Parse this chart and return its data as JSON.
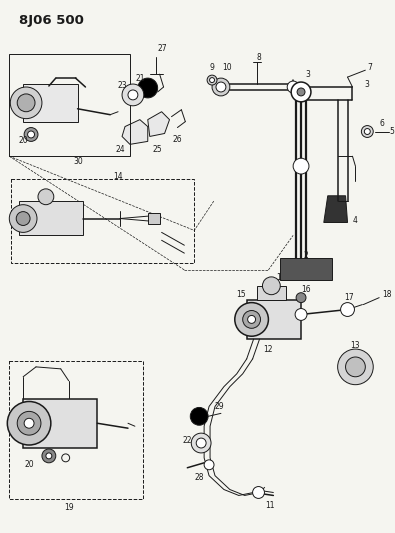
{
  "title": "8J06 500",
  "bg_color": "#f5f5f0",
  "line_color": "#1a1a1a",
  "fig_width": 3.95,
  "fig_height": 5.33,
  "dpi": 100,
  "label_fontsize": 6.0,
  "title_fontsize": 9.5
}
